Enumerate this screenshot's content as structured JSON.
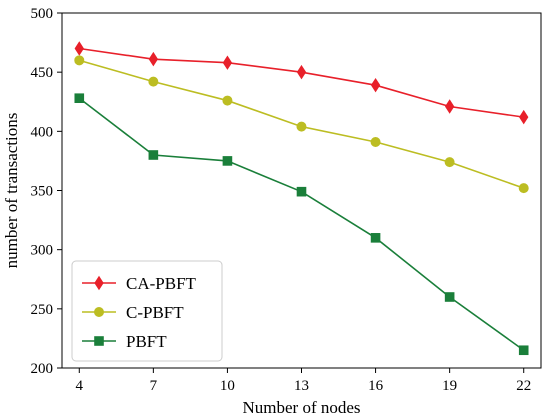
{
  "chart_data": {
    "type": "line",
    "title": "",
    "xlabel": "Number of nodes",
    "ylabel": "number of transactions",
    "x": [
      4,
      7,
      10,
      13,
      16,
      19,
      22
    ],
    "xticks": [
      "4",
      "7",
      "10",
      "13",
      "16",
      "19",
      "22"
    ],
    "xlim": [
      3.3,
      22.7
    ],
    "ylim": [
      200,
      500
    ],
    "yticks": [
      "200",
      "250",
      "300",
      "350",
      "400",
      "450",
      "500"
    ],
    "grid": false,
    "legend_position": "lower-left",
    "series": [
      {
        "name": "CA-PBFT",
        "color": "#e8202a",
        "marker": "diamond",
        "values": [
          470,
          461,
          458,
          450,
          439,
          421,
          412
        ]
      },
      {
        "name": "C-PBFT",
        "color": "#bcbd22",
        "marker": "circle",
        "values": [
          460,
          442,
          426,
          404,
          391,
          374,
          352
        ]
      },
      {
        "name": "PBFT",
        "color": "#1a7f3a",
        "marker": "square",
        "values": [
          428,
          380,
          375,
          349,
          310,
          260,
          215
        ]
      }
    ]
  }
}
